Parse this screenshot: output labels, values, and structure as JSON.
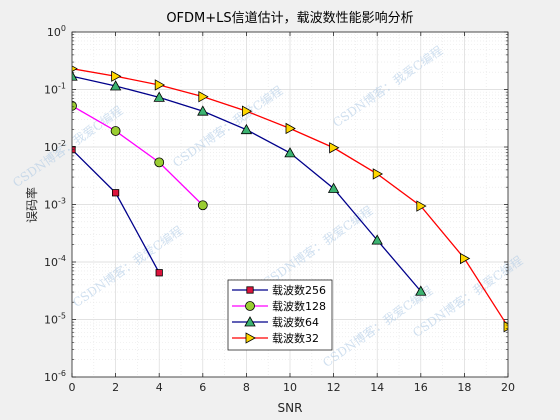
{
  "chart_data": {
    "type": "line",
    "title": "OFDM+LS信道估计，载波数性能影响分析",
    "xlabel": "SNR",
    "ylabel": "误码率",
    "xlim": [
      0,
      20
    ],
    "ylim": [
      1e-06,
      1
    ],
    "yscale": "log",
    "grid": true,
    "xticks": [
      "0",
      "2",
      "4",
      "6",
      "8",
      "10",
      "12",
      "14",
      "16",
      "18",
      "20"
    ],
    "yticks": [
      {
        "base": "10",
        "exp": "-6"
      },
      {
        "base": "10",
        "exp": "-5"
      },
      {
        "base": "10",
        "exp": "-4"
      },
      {
        "base": "10",
        "exp": "-3"
      },
      {
        "base": "10",
        "exp": "-2"
      },
      {
        "base": "10",
        "exp": "-1"
      },
      {
        "base": "10",
        "exp": "0"
      }
    ],
    "legend_position": "bottom-left-center",
    "series": [
      {
        "name": "载波数256",
        "color": "#00008b",
        "face": "#dc143c",
        "marker": "square",
        "x": [
          0,
          2,
          4
        ],
        "y": [
          0.009,
          0.0016,
          6.5e-05
        ]
      },
      {
        "name": "载波数128",
        "color": "#ff00ff",
        "face": "#9acd32",
        "marker": "circle",
        "x": [
          0,
          2,
          4,
          6
        ],
        "y": [
          0.052,
          0.019,
          0.0054,
          0.00097
        ]
      },
      {
        "name": "载波数64",
        "color": "#00008b",
        "face": "#3cb371",
        "marker": "triangle",
        "x": [
          0,
          2,
          4,
          6,
          8,
          10,
          12,
          14,
          16
        ],
        "y": [
          0.17,
          0.115,
          0.073,
          0.042,
          0.02,
          0.0079,
          0.0019,
          0.00024,
          3.1e-05
        ]
      },
      {
        "name": "载波数32",
        "color": "#ff0000",
        "face": "#ffd700",
        "marker": "triangle-right",
        "x": [
          0,
          2,
          4,
          6,
          8,
          10,
          12,
          14,
          16,
          18,
          20
        ],
        "y": [
          0.23,
          0.17,
          0.12,
          0.075,
          0.042,
          0.021,
          0.0097,
          0.0034,
          0.00094,
          0.000115,
          7.5e-06
        ]
      }
    ]
  },
  "watermark": "CSDN博客：我爱C编程"
}
